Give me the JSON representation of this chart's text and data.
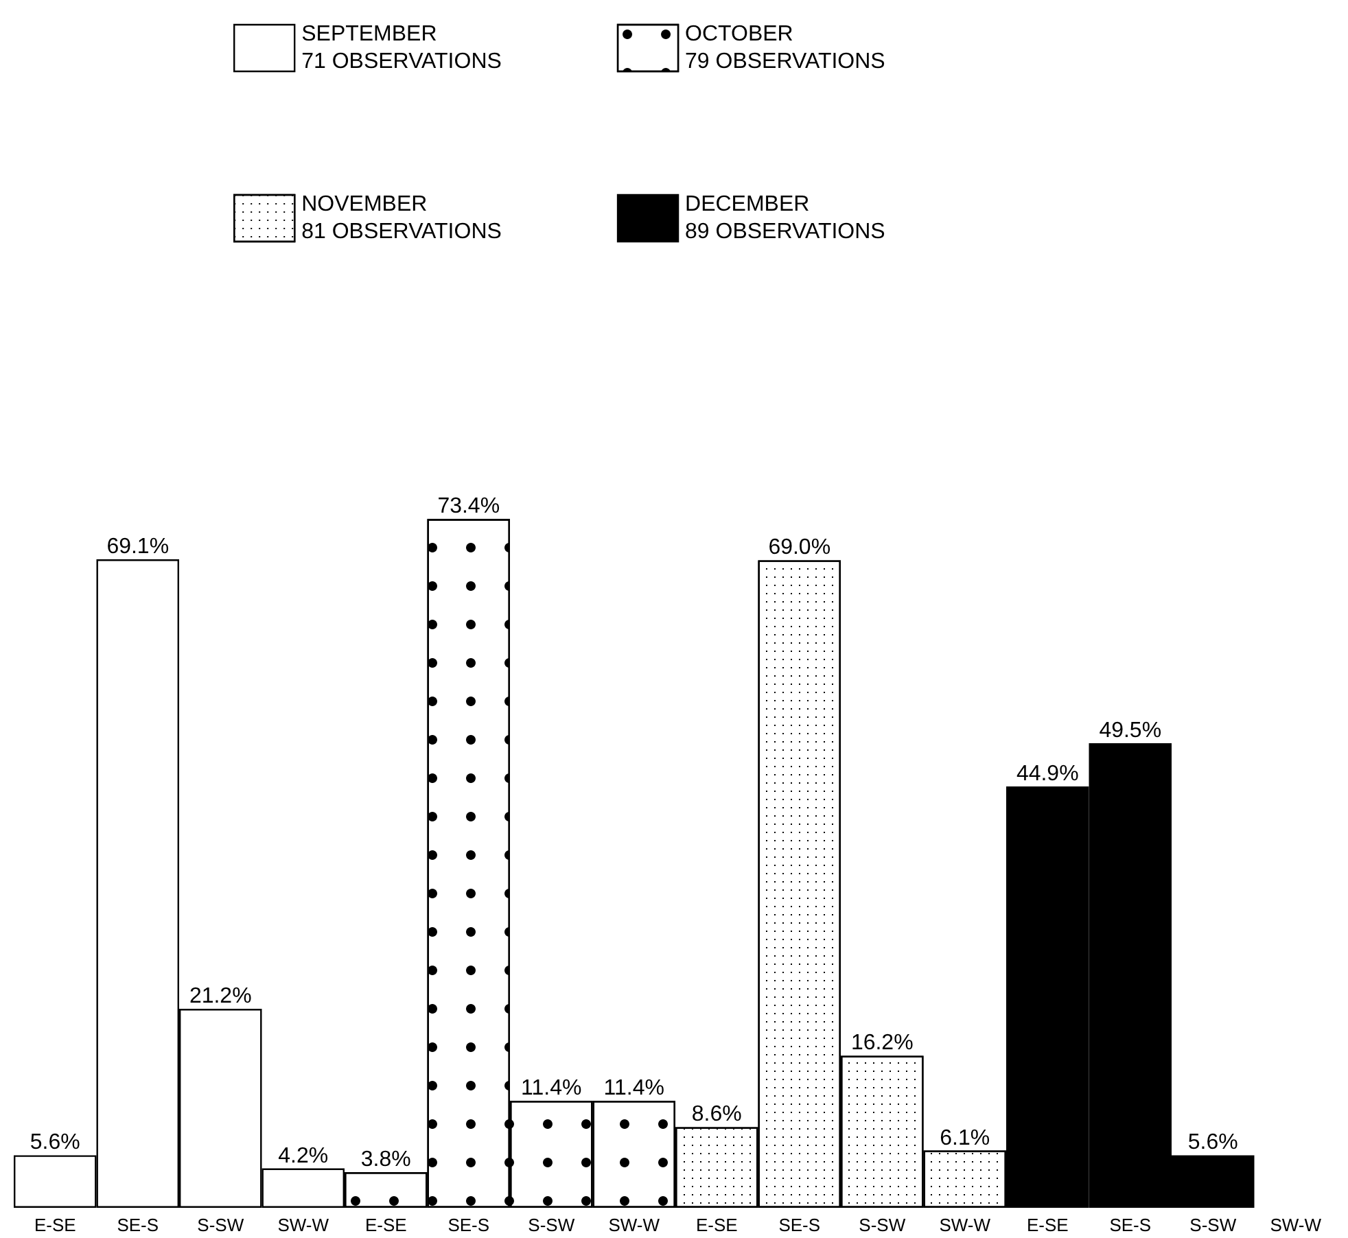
{
  "chart_data": {
    "type": "bar",
    "categories": [
      "E-SE",
      "SE-S",
      "S-SW",
      "SW-W",
      "E-SE",
      "SE-S",
      "S-SW",
      "SW-W",
      "E-SE",
      "SE-S",
      "S-SW",
      "SW-W",
      "E-SE",
      "SE-S",
      "S-SW",
      "SW-W"
    ],
    "series": [
      {
        "name": "SEPTEMBER\n71 OBSERVATIONS",
        "color": "#ffffff",
        "values": [
          5.6,
          69.1,
          21.2,
          4.2,
          null,
          null,
          null,
          null,
          null,
          null,
          null,
          null,
          null,
          null,
          null,
          null
        ],
        "value_labels": [
          "5.6%",
          "69.1%",
          "21.2%",
          "4.2%",
          null,
          null,
          null,
          null,
          null,
          null,
          null,
          null,
          null,
          null,
          null,
          null
        ]
      },
      {
        "name": "OCTOBER\n79 OBSERVATIONS",
        "color": "#ffffff",
        "values": [
          null,
          null,
          null,
          null,
          3.8,
          73.4,
          11.4,
          11.4,
          null,
          null,
          null,
          null,
          null,
          null,
          null,
          null
        ],
        "value_labels": [
          null,
          null,
          null,
          null,
          "3.8%",
          "73.4%",
          "11.4%",
          "11.4%",
          null,
          null,
          null,
          null,
          null,
          null,
          null,
          null
        ]
      },
      {
        "name": "NOVEMBER\n81 OBSERVATIONS",
        "color": "#ffffff",
        "values": [
          null,
          null,
          null,
          null,
          null,
          null,
          null,
          null,
          8.6,
          69.0,
          16.2,
          6.1,
          null,
          null,
          null,
          null
        ],
        "value_labels": [
          null,
          null,
          null,
          null,
          null,
          null,
          null,
          null,
          "8.6%",
          "69.0%",
          "16.2%",
          "6.1%",
          null,
          null,
          null,
          null
        ]
      },
      {
        "name": "DECEMBER\n89 OBSERVATIONS",
        "color": "#000000",
        "values": [
          null,
          null,
          null,
          null,
          null,
          null,
          null,
          null,
          null,
          null,
          null,
          null,
          44.9,
          49.5,
          5.6,
          null
        ],
        "value_labels": [
          null,
          null,
          null,
          null,
          null,
          null,
          null,
          null,
          null,
          null,
          null,
          null,
          "44.9%",
          "49.5%",
          "5.6%",
          null
        ]
      }
    ],
    "tick_labels": "x",
    "legend": "top"
  }
}
